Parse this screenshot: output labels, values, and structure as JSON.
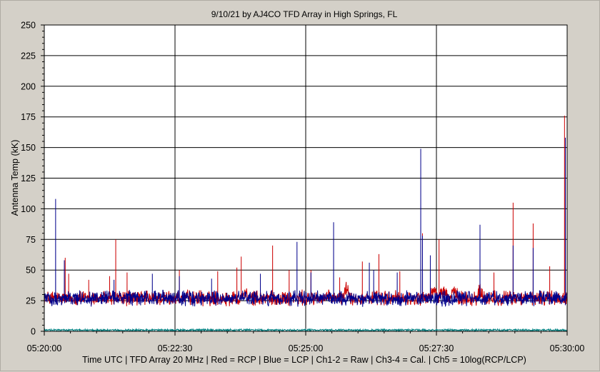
{
  "chart_data": {
    "type": "line",
    "title": "9/10/21  by  AJ4CO TFD Array  in  High Springs, FL",
    "xlabel": "Time UTC | TFD Array 20 MHz | Red = RCP | Blue = LCP | Ch1-2 = Raw | Ch3-4 = Cal. | Ch5 = 10log(RCP/LCP)",
    "ylabel": "Antenna Temp (kK)",
    "ylim": [
      0,
      250
    ],
    "xlim_seconds": [
      0,
      600
    ],
    "x_tick_labels": [
      "05:20:00",
      "05:22:30",
      "05:25:00",
      "05:27:30",
      "05:30:00"
    ],
    "y_tick_labels": [
      "0",
      "25",
      "50",
      "75",
      "100",
      "125",
      "150",
      "175",
      "200",
      "225",
      "250"
    ],
    "grid": true,
    "colors": {
      "rcp": "#cc0000",
      "lcp": "#00008b",
      "ch5": "#008080",
      "background": "#ffffff",
      "frame": "#d4d0c8"
    },
    "series": [
      {
        "name": "RCP",
        "baseline": 27,
        "spikes": [
          {
            "t": 24,
            "v": 60
          },
          {
            "t": 28,
            "v": 47
          },
          {
            "t": 51,
            "v": 42
          },
          {
            "t": 75,
            "v": 45
          },
          {
            "t": 82,
            "v": 75
          },
          {
            "t": 95,
            "v": 48
          },
          {
            "t": 155,
            "v": 50
          },
          {
            "t": 199,
            "v": 49
          },
          {
            "t": 221,
            "v": 52
          },
          {
            "t": 226,
            "v": 61
          },
          {
            "t": 262,
            "v": 70
          },
          {
            "t": 281,
            "v": 50
          },
          {
            "t": 306,
            "v": 50
          },
          {
            "t": 339,
            "v": 44
          },
          {
            "t": 365,
            "v": 57
          },
          {
            "t": 384,
            "v": 63
          },
          {
            "t": 408,
            "v": 49
          },
          {
            "t": 434,
            "v": 80
          },
          {
            "t": 453,
            "v": 75
          },
          {
            "t": 516,
            "v": 48
          },
          {
            "t": 538,
            "v": 105
          },
          {
            "t": 561,
            "v": 88
          },
          {
            "t": 580,
            "v": 53
          },
          {
            "t": 597,
            "v": 176
          }
        ],
        "bumps": [
          {
            "t": 230,
            "v": 34
          },
          {
            "t": 347,
            "v": 38
          },
          {
            "t": 446,
            "v": 37
          },
          {
            "t": 470,
            "v": 34
          },
          {
            "t": 500,
            "v": 35
          },
          {
            "t": 458,
            "v": 36
          }
        ]
      },
      {
        "name": "LCP",
        "baseline": 27,
        "spikes": [
          {
            "t": 13,
            "v": 108
          },
          {
            "t": 23,
            "v": 58
          },
          {
            "t": 80,
            "v": 42
          },
          {
            "t": 124,
            "v": 47
          },
          {
            "t": 155,
            "v": 45
          },
          {
            "t": 192,
            "v": 43
          },
          {
            "t": 248,
            "v": 47
          },
          {
            "t": 290,
            "v": 73
          },
          {
            "t": 306,
            "v": 48
          },
          {
            "t": 332,
            "v": 89
          },
          {
            "t": 373,
            "v": 56
          },
          {
            "t": 378,
            "v": 50
          },
          {
            "t": 405,
            "v": 48
          },
          {
            "t": 432,
            "v": 149
          },
          {
            "t": 434,
            "v": 78
          },
          {
            "t": 443,
            "v": 62
          },
          {
            "t": 500,
            "v": 87
          },
          {
            "t": 538,
            "v": 70
          },
          {
            "t": 561,
            "v": 68
          },
          {
            "t": 598,
            "v": 158
          }
        ],
        "bumps": []
      },
      {
        "name": "Ch5",
        "baseline": 1,
        "spikes": [],
        "bumps": []
      }
    ]
  }
}
